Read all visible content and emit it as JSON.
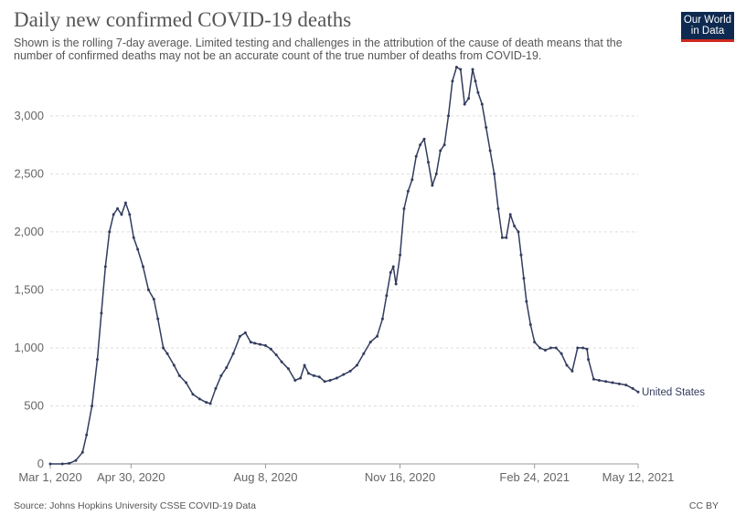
{
  "chart_data": {
    "type": "line",
    "title": "Daily new confirmed COVID-19 deaths",
    "subtitle": "Shown is the rolling 7-day average. Limited testing and challenges in the attribution of the cause of death means that the number of confirmed deaths may not be an accurate count of the true number of deaths from COVID-19.",
    "xlabel": "",
    "ylabel": "",
    "x_ticks": [
      "Mar 1, 2020",
      "Apr 30, 2020",
      "Aug 8, 2020",
      "Nov 16, 2020",
      "Feb 24, 2021",
      "May 12, 2021"
    ],
    "y_ticks": [
      0,
      500,
      1000,
      1500,
      2000,
      2500,
      3000
    ],
    "y_tick_labels": [
      "0",
      "500",
      "1,000",
      "1,500",
      "2,000",
      "2,500",
      "3,000"
    ],
    "xlim": [
      "2020-03-01",
      "2021-05-12"
    ],
    "ylim": [
      0,
      3400
    ],
    "grid": "horizontal dashed",
    "series": [
      {
        "name": "United States",
        "color": "#333c5e",
        "x": [
          "2020-03-01",
          "2020-03-10",
          "2020-03-15",
          "2020-03-20",
          "2020-03-25",
          "2020-03-28",
          "2020-04-01",
          "2020-04-05",
          "2020-04-08",
          "2020-04-11",
          "2020-04-14",
          "2020-04-17",
          "2020-04-20",
          "2020-04-23",
          "2020-04-26",
          "2020-04-29",
          "2020-05-02",
          "2020-05-05",
          "2020-05-09",
          "2020-05-13",
          "2020-05-17",
          "2020-05-20",
          "2020-05-24",
          "2020-05-27",
          "2020-06-01",
          "2020-06-05",
          "2020-06-10",
          "2020-06-15",
          "2020-06-20",
          "2020-06-25",
          "2020-06-28",
          "2020-07-02",
          "2020-07-06",
          "2020-07-10",
          "2020-07-15",
          "2020-07-20",
          "2020-07-24",
          "2020-07-28",
          "2020-07-31",
          "2020-08-04",
          "2020-08-08",
          "2020-08-12",
          "2020-08-16",
          "2020-08-20",
          "2020-08-25",
          "2020-08-30",
          "2020-09-03",
          "2020-09-06",
          "2020-09-09",
          "2020-09-13",
          "2020-09-17",
          "2020-09-21",
          "2020-09-25",
          "2020-09-30",
          "2020-10-05",
          "2020-10-10",
          "2020-10-15",
          "2020-10-20",
          "2020-10-25",
          "2020-10-30",
          "2020-11-03",
          "2020-11-06",
          "2020-11-09",
          "2020-11-11",
          "2020-11-13",
          "2020-11-16",
          "2020-11-19",
          "2020-11-22",
          "2020-11-25",
          "2020-11-28",
          "2020-12-01",
          "2020-12-04",
          "2020-12-07",
          "2020-12-10",
          "2020-12-13",
          "2020-12-16",
          "2020-12-19",
          "2020-12-22",
          "2020-12-25",
          "2020-12-28",
          "2020-12-31",
          "2021-01-03",
          "2021-01-06",
          "2021-01-09",
          "2021-01-11",
          "2021-01-13",
          "2021-01-16",
          "2021-01-19",
          "2021-01-22",
          "2021-01-25",
          "2021-01-28",
          "2021-01-31",
          "2021-02-03",
          "2021-02-06",
          "2021-02-09",
          "2021-02-12",
          "2021-02-14",
          "2021-02-16",
          "2021-02-18",
          "2021-02-21",
          "2021-02-24",
          "2021-02-28",
          "2021-03-04",
          "2021-03-08",
          "2021-03-12",
          "2021-03-16",
          "2021-03-20",
          "2021-03-24",
          "2021-03-28",
          "2021-04-01",
          "2021-04-04",
          "2021-04-05",
          "2021-04-09",
          "2021-04-13",
          "2021-04-18",
          "2021-04-23",
          "2021-04-28",
          "2021-05-03",
          "2021-05-08",
          "2021-05-12"
        ],
        "values": [
          0,
          0,
          5,
          30,
          100,
          250,
          500,
          900,
          1300,
          1700,
          2000,
          2150,
          2200,
          2150,
          2250,
          2150,
          1950,
          1850,
          1700,
          1500,
          1420,
          1250,
          1000,
          950,
          850,
          760,
          700,
          600,
          560,
          530,
          520,
          650,
          760,
          830,
          950,
          1100,
          1130,
          1050,
          1040,
          1030,
          1020,
          990,
          940,
          880,
          820,
          720,
          740,
          850,
          780,
          760,
          750,
          710,
          720,
          740,
          770,
          800,
          850,
          950,
          1050,
          1100,
          1250,
          1450,
          1650,
          1700,
          1550,
          1800,
          2200,
          2350,
          2450,
          2650,
          2750,
          2800,
          2600,
          2400,
          2500,
          2700,
          2750,
          3000,
          3300,
          3420,
          3400,
          3100,
          3150,
          3400,
          3300,
          3200,
          3100,
          2900,
          2700,
          2500,
          2200,
          1950,
          1950,
          2150,
          2050,
          2000,
          1800,
          1600,
          1400,
          1200,
          1050,
          1000,
          980,
          1000,
          1000,
          950,
          850,
          800,
          1000,
          1000,
          990,
          900,
          730,
          720,
          710,
          700,
          690,
          680,
          650,
          620
        ]
      }
    ]
  },
  "source": "Source: Johns Hopkins University CSSE COVID-19 Data",
  "license": "CC BY",
  "logo": {
    "line1": "Our World",
    "line2": "in Data",
    "bg": "#0e2a50",
    "accent": "#d0271d"
  }
}
